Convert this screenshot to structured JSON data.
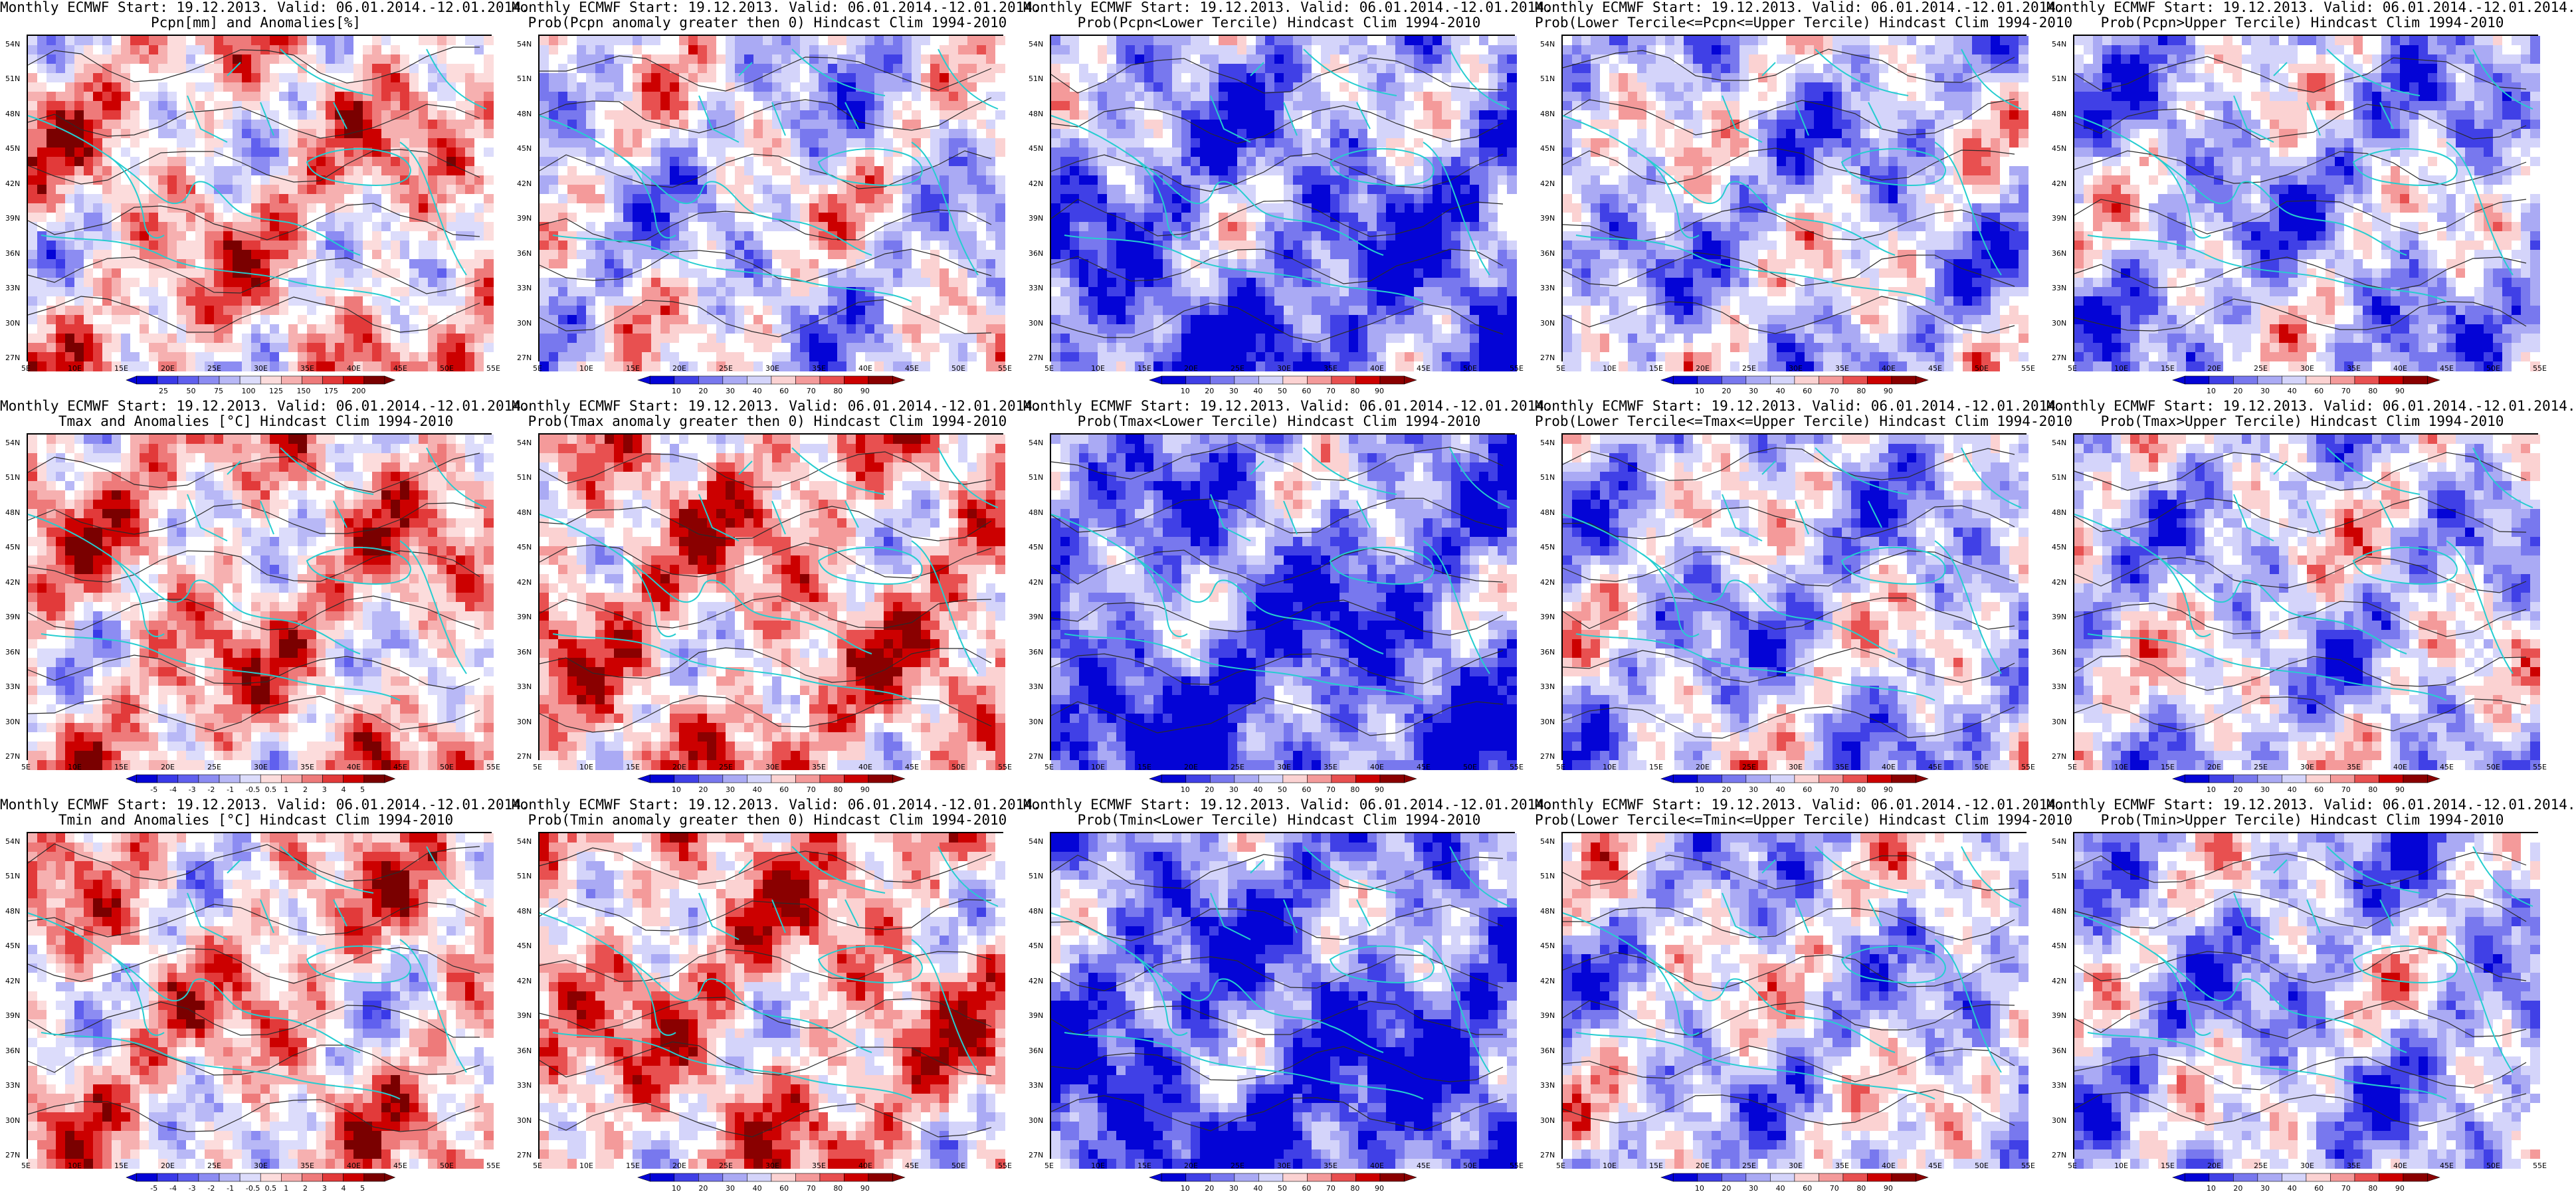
{
  "x_ticks": [
    "5E",
    "10E",
    "15E",
    "20E",
    "25E",
    "30E",
    "35E",
    "40E",
    "45E",
    "50E",
    "55E"
  ],
  "y_ticks": [
    "54N",
    "51N",
    "48N",
    "45N",
    "42N",
    "39N",
    "36N",
    "33N",
    "30N",
    "27N"
  ],
  "colors": {
    "coast": "#26cdd0",
    "contour": "#2b2b2b",
    "anom": [
      "#0404d6",
      "#3a3ae8",
      "#6060ee",
      "#8c8cf2",
      "#b8b8f6",
      "#dcdcfb",
      "#ffffff",
      "#fcdcdc",
      "#f6b0b0",
      "#ee7a7a",
      "#e23a3a",
      "#cc0000",
      "#7a0000"
    ],
    "prob": [
      "#0404d6",
      "#4040e6",
      "#7878ee",
      "#aaaaf4",
      "#d4d4fa",
      "#ffffff",
      "#fbd2d2",
      "#f49a9a",
      "#e85050",
      "#cc0000",
      "#8a0000"
    ]
  },
  "panels": [
    {
      "title1": "Monthly ECMWF Start: 19.12.2013. Valid: 06.01.2014.-12.01.2014.",
      "title2": "Pcpn[mm] and Anomalies[%]",
      "variable": "pcpn-anomaly",
      "scale": "anom",
      "bias": 0.2,
      "seed": 11,
      "colorbar_labels": [
        "25",
        "50",
        "75",
        "100",
        "125",
        "150",
        "175",
        "200"
      ]
    },
    {
      "title1": "Monthly ECMWF Start: 19.12.2013. Valid: 06.01.2014.-12.01.2014.",
      "title2": "Prob(Pcpn anomaly greater then 0) Hindcast Clim 1994-2010",
      "variable": "pcpn-prob-gt0",
      "scale": "prob",
      "bias": -0.15,
      "seed": 23,
      "colorbar_labels": [
        "10",
        "20",
        "30",
        "40",
        "60",
        "70",
        "80",
        "90"
      ]
    },
    {
      "title1": "Monthly ECMWF Start: 19.12.2013. Valid: 06.01.2014.-12.01.2014.",
      "title2": "Prob(Pcpn<Lower Tercile) Hindcast Clim 1994-2010",
      "variable": "pcpn-prob-lower",
      "scale": "prob",
      "bias": -0.35,
      "seed": 37,
      "colorbar_labels": [
        "10",
        "20",
        "30",
        "40",
        "50",
        "60",
        "70",
        "80",
        "90"
      ]
    },
    {
      "title1": "Monthly ECMWF Start: 19.12.2013. Valid: 06.01.2014.-12.01.2014.",
      "title2": "Prob(Lower Tercile<=Pcpn<=Upper Tercile) Hindcast Clim 1994-2010",
      "variable": "pcpn-prob-middle",
      "scale": "prob",
      "bias": -0.25,
      "seed": 41,
      "colorbar_labels": [
        "10",
        "20",
        "30",
        "40",
        "60",
        "70",
        "80",
        "90"
      ]
    },
    {
      "title1": "Monthly ECMWF Start: 19.12.2013. Valid: 06.01.2014.-12.01.2014.",
      "title2": "Prob(Pcpn>Upper Tercile) Hindcast Clim 1994-2010",
      "variable": "pcpn-prob-upper",
      "scale": "prob",
      "bias": -0.3,
      "seed": 53,
      "colorbar_labels": [
        "10",
        "20",
        "30",
        "40",
        "60",
        "70",
        "80",
        "90"
      ]
    },
    {
      "title1": "Monthly ECMWF Start: 19.12.2013. Valid: 06.01.2014.-12.01.2014.",
      "title2": "Tmax and Anomalies [°C] Hindcast Clim 1994-2010",
      "variable": "tmax-anomaly",
      "scale": "anom",
      "bias": 0.25,
      "seed": 61,
      "colorbar_labels": [
        "-5",
        "-4",
        "-3",
        "-2",
        "-1",
        "-0.5",
        "0.5",
        "1",
        "2",
        "3",
        "4",
        "5"
      ]
    },
    {
      "title1": "Monthly ECMWF Start: 19.12.2013. Valid: 06.01.2014.-12.01.2014.",
      "title2": "Prob(Tmax anomaly greater then 0) Hindcast Clim 1994-2010",
      "variable": "tmax-prob-gt0",
      "scale": "prob",
      "bias": 0.3,
      "seed": 71,
      "colorbar_labels": [
        "10",
        "20",
        "30",
        "40",
        "60",
        "70",
        "80",
        "90"
      ]
    },
    {
      "title1": "Monthly ECMWF Start: 19.12.2013. Valid: 06.01.2014.-12.01.2014.",
      "title2": "Prob(Tmax<Lower Tercile) Hindcast Clim 1994-2010",
      "variable": "tmax-prob-lower",
      "scale": "prob",
      "bias": -0.4,
      "seed": 83,
      "colorbar_labels": [
        "10",
        "20",
        "30",
        "40",
        "50",
        "60",
        "70",
        "80",
        "90"
      ]
    },
    {
      "title1": "Monthly ECMWF Start: 19.12.2013. Valid: 06.01.2014.-12.01.2014.",
      "title2": "Prob(Lower Tercile<=Tmax<=Upper Tercile) Hindcast Clim 1994-2010",
      "variable": "tmax-prob-middle",
      "scale": "prob",
      "bias": -0.25,
      "seed": 97,
      "colorbar_labels": [
        "10",
        "20",
        "30",
        "40",
        "60",
        "70",
        "80",
        "90"
      ]
    },
    {
      "title1": "Monthly ECMWF Start: 19.12.2013. Valid: 06.01.2014.-12.01.2014.",
      "title2": "Prob(Tmax>Upper Tercile) Hindcast Clim 1994-2010",
      "variable": "tmax-prob-upper",
      "scale": "prob",
      "bias": -0.2,
      "seed": 101,
      "colorbar_labels": [
        "10",
        "20",
        "30",
        "40",
        "60",
        "70",
        "80",
        "90"
      ]
    },
    {
      "title1": "Monthly ECMWF Start: 19.12.2013. Valid: 06.01.2014.-12.01.2014.",
      "title2": "Tmin and Anomalies [°C] Hindcast Clim 1994-2010",
      "variable": "tmin-anomaly",
      "scale": "anom",
      "bias": 0.2,
      "seed": 113,
      "colorbar_labels": [
        "-5",
        "-4",
        "-3",
        "-2",
        "-1",
        "-0.5",
        "0.5",
        "1",
        "2",
        "3",
        "4",
        "5"
      ]
    },
    {
      "title1": "Monthly ECMWF Start: 19.12.2013. Valid: 06.01.2014.-12.01.2014.",
      "title2": "Prob(Tmin anomaly greater then 0) Hindcast Clim 1994-2010",
      "variable": "tmin-prob-gt0",
      "scale": "prob",
      "bias": 0.3,
      "seed": 127,
      "colorbar_labels": [
        "10",
        "20",
        "30",
        "40",
        "60",
        "70",
        "80",
        "90"
      ]
    },
    {
      "title1": "Monthly ECMWF Start: 19.12.2013. Valid: 06.01.2014.-12.01.2014.",
      "title2": "Prob(Tmin<Lower Tercile) Hindcast Clim 1994-2010",
      "variable": "tmin-prob-lower",
      "scale": "prob",
      "bias": -0.45,
      "seed": 131,
      "colorbar_labels": [
        "10",
        "20",
        "30",
        "40",
        "50",
        "60",
        "70",
        "80",
        "90"
      ]
    },
    {
      "title1": "Monthly ECMWF Start: 19.12.2013. Valid: 06.01.2014.-12.01.2014.",
      "title2": "Prob(Lower Tercile<=Tmin<=Upper Tercile) Hindcast Clim 1994-2010",
      "variable": "tmin-prob-middle",
      "scale": "prob",
      "bias": -0.2,
      "seed": 139,
      "colorbar_labels": [
        "10",
        "20",
        "30",
        "40",
        "60",
        "70",
        "80",
        "90"
      ]
    },
    {
      "title1": "Monthly ECMWF Start: 19.12.2013. Valid: 06.01.2014.-12.01.2014.",
      "title2": "Prob(Tmin>Upper Tercile) Hindcast Clim 1994-2010",
      "variable": "tmin-prob-upper",
      "scale": "prob",
      "bias": -0.3,
      "seed": 149,
      "colorbar_labels": [
        "10",
        "20",
        "30",
        "40",
        "60",
        "70",
        "80",
        "90"
      ]
    }
  ]
}
